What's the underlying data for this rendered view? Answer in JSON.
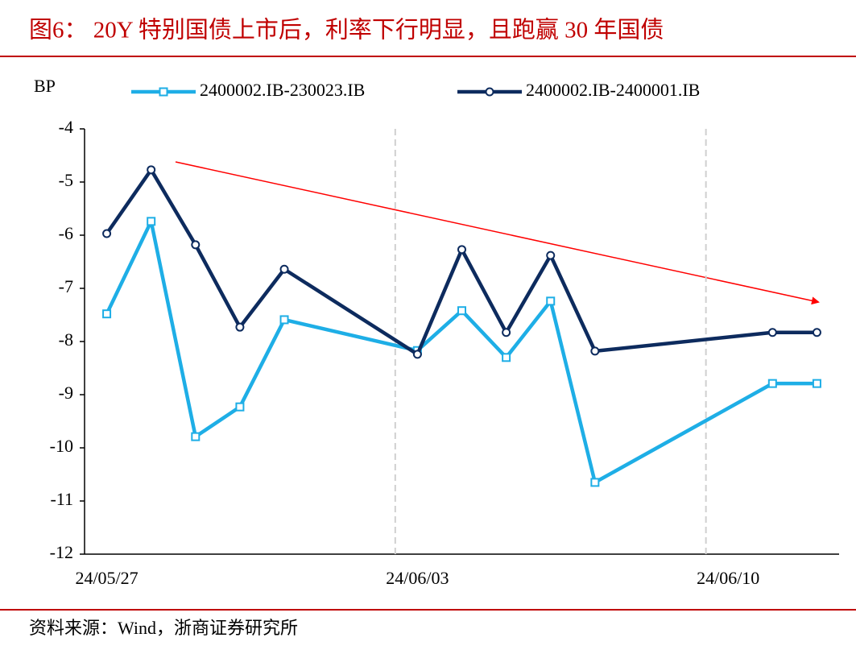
{
  "chart_data": {
    "type": "line",
    "title": "图6： 20Y 特别国债上市后，利率下行明显，且跑赢 30 年国债",
    "y_label": "BP",
    "source": "资料来源：Wind，浙商证券研究所",
    "x": [
      "24/05/27",
      "24/05/28",
      "24/05/29",
      "24/05/30",
      "24/05/31",
      "24/06/03",
      "24/06/04",
      "24/06/05",
      "24/06/06",
      "24/06/07",
      "24/06/11",
      "24/06/12"
    ],
    "series": [
      {
        "name": "2400002.IB-230023.IB",
        "color": "#1eaee6",
        "marker": "square",
        "values": [
          -7.48,
          -5.74,
          -9.79,
          -9.23,
          -7.59,
          -8.17,
          -7.42,
          -8.3,
          -7.24,
          -10.65,
          -8.79,
          -8.79
        ]
      },
      {
        "name": "2400002.IB-2400001.IB",
        "color": "#0d2b5e",
        "marker": "circle",
        "values": [
          -5.97,
          -4.77,
          -6.18,
          -7.73,
          -6.64,
          -8.24,
          -6.27,
          -7.83,
          -6.38,
          -8.18,
          -7.83,
          -7.83
        ]
      }
    ],
    "xlim": [
      "24/05/27",
      "24/06/12"
    ],
    "xticks": [
      "24/05/27",
      "24/06/03",
      "24/06/10"
    ],
    "ylim": [
      -12,
      -4
    ],
    "yticks": [
      -12,
      -11,
      -10,
      -9,
      -8,
      -7,
      -6,
      -5,
      -4
    ],
    "grid": true
  }
}
